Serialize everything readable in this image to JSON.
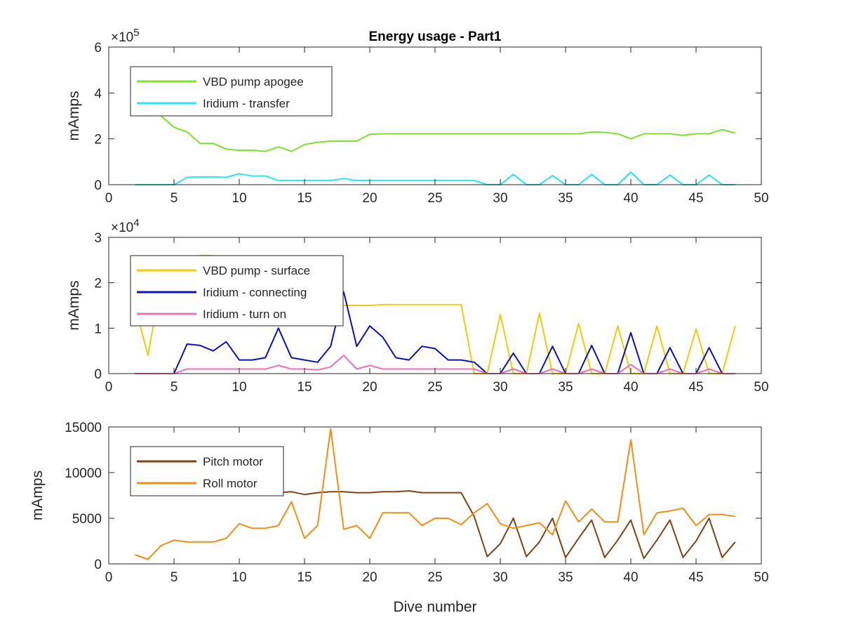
{
  "figure": {
    "title": "Energy usage - Part1",
    "xlabel": "Dive number"
  },
  "chart_data": [
    {
      "type": "line",
      "title": "Energy usage - Part1",
      "xlabel": "",
      "ylabel": "mAmps",
      "xlim": [
        0,
        50
      ],
      "ylim": [
        0,
        600000
      ],
      "xticks": [
        0,
        5,
        10,
        15,
        20,
        25,
        30,
        35,
        40,
        45,
        50
      ],
      "yticks": [
        0,
        200000,
        400000,
        600000
      ],
      "ytick_labels": [
        "0",
        "2",
        "4",
        "6"
      ],
      "y_exponent": "5",
      "legend_placement": "top-left",
      "series": [
        {
          "name": "VBD pump apogee",
          "color": "#7ee02d",
          "x": [
            2,
            3,
            4,
            5,
            6,
            7,
            8,
            9,
            10,
            11,
            12,
            13,
            14,
            15,
            16,
            17,
            18,
            19,
            20,
            21,
            22,
            23,
            24,
            25,
            26,
            27,
            28,
            29,
            30,
            31,
            32,
            33,
            34,
            35,
            36,
            37,
            38,
            39,
            40,
            41,
            42,
            43,
            44,
            45,
            46,
            47,
            48
          ],
          "y": [
            480000,
            350000,
            300000,
            250000,
            230000,
            180000,
            180000,
            155000,
            150000,
            150000,
            145000,
            165000,
            145000,
            175000,
            185000,
            190000,
            190000,
            190000,
            220000,
            222000,
            222000,
            222000,
            222000,
            222000,
            222000,
            222000,
            222000,
            222000,
            222000,
            222000,
            222000,
            222000,
            222000,
            222000,
            222000,
            230000,
            228000,
            222000,
            200000,
            222000,
            222000,
            222000,
            215000,
            222000,
            222000,
            240000,
            225000
          ]
        },
        {
          "name": "Iridium - transfer",
          "color": "#28e6ec",
          "x": [
            2,
            3,
            4,
            5,
            6,
            7,
            8,
            9,
            10,
            11,
            12,
            13,
            14,
            15,
            16,
            17,
            18,
            19,
            20,
            21,
            22,
            23,
            24,
            25,
            26,
            27,
            28,
            29,
            30,
            31,
            32,
            33,
            34,
            35,
            36,
            37,
            38,
            39,
            40,
            41,
            42,
            43,
            44,
            45,
            46,
            47,
            48
          ],
          "y": [
            0,
            0,
            0,
            0,
            32000,
            34000,
            34000,
            32000,
            48000,
            38000,
            38000,
            18000,
            18000,
            18000,
            18000,
            18000,
            27000,
            18000,
            18000,
            18000,
            18000,
            18000,
            18000,
            18000,
            18000,
            18000,
            18000,
            0,
            0,
            45000,
            0,
            0,
            40000,
            0,
            0,
            45000,
            0,
            0,
            55000,
            0,
            0,
            42000,
            0,
            0,
            42000,
            0,
            0
          ]
        }
      ]
    },
    {
      "type": "line",
      "title": "",
      "xlabel": "",
      "ylabel": "mAmps",
      "xlim": [
        0,
        50
      ],
      "ylim": [
        0,
        30000
      ],
      "xticks": [
        0,
        5,
        10,
        15,
        20,
        25,
        30,
        35,
        40,
        45,
        50
      ],
      "yticks": [
        0,
        10000,
        20000,
        30000
      ],
      "ytick_labels": [
        "0",
        "1",
        "2",
        "3"
      ],
      "y_exponent": "4",
      "legend_placement": "top-left",
      "series": [
        {
          "name": "VBD pump - surface",
          "color": "#f2cb0d",
          "x": [
            2,
            3,
            4,
            5,
            6,
            7,
            8,
            9,
            10,
            11,
            12,
            13,
            14,
            15,
            16,
            17,
            18,
            19,
            20,
            21,
            22,
            23,
            24,
            25,
            26,
            27,
            28,
            29,
            30,
            31,
            32,
            33,
            34,
            35,
            36,
            37,
            38,
            39,
            40,
            41,
            42,
            43,
            44,
            45,
            46,
            47,
            48
          ],
          "y": [
            15000,
            4000,
            20000,
            24000,
            25000,
            26000,
            26000,
            25000,
            24000,
            24000,
            23000,
            22000,
            21000,
            20000,
            18000,
            16000,
            15000,
            15000,
            15000,
            15200,
            15200,
            15200,
            15200,
            15200,
            15200,
            15200,
            0,
            0,
            13000,
            0,
            0,
            13300,
            0,
            0,
            11000,
            0,
            0,
            10500,
            0,
            0,
            10500,
            0,
            0,
            9800,
            0,
            0,
            10500
          ]
        },
        {
          "name": "Iridium - connecting",
          "color": "#0a14b4",
          "x": [
            2,
            3,
            4,
            5,
            6,
            7,
            8,
            9,
            10,
            11,
            12,
            13,
            14,
            15,
            16,
            17,
            18,
            19,
            20,
            21,
            22,
            23,
            24,
            25,
            26,
            27,
            28,
            29,
            30,
            31,
            32,
            33,
            34,
            35,
            36,
            37,
            38,
            39,
            40,
            41,
            42,
            43,
            44,
            45,
            46,
            47,
            48
          ],
          "y": [
            0,
            0,
            0,
            0,
            6500,
            6200,
            5000,
            7000,
            3000,
            3000,
            3500,
            10000,
            3500,
            3000,
            2500,
            6000,
            18000,
            6000,
            10500,
            8000,
            3500,
            3000,
            6000,
            5500,
            3000,
            3000,
            2500,
            0,
            0,
            4500,
            0,
            0,
            6000,
            0,
            0,
            6200,
            0,
            0,
            9000,
            0,
            0,
            5700,
            0,
            0,
            5700,
            0,
            0
          ]
        },
        {
          "name": "Iridium - turn on",
          "color": "#e873b4",
          "x": [
            2,
            3,
            4,
            5,
            6,
            7,
            8,
            9,
            10,
            11,
            12,
            13,
            14,
            15,
            16,
            17,
            18,
            19,
            20,
            21,
            22,
            23,
            24,
            25,
            26,
            27,
            28,
            29,
            30,
            31,
            32,
            33,
            34,
            35,
            36,
            37,
            38,
            39,
            40,
            41,
            42,
            43,
            44,
            45,
            46,
            47,
            48
          ],
          "y": [
            0,
            0,
            0,
            0,
            1000,
            1000,
            1000,
            1000,
            1000,
            1000,
            1000,
            1800,
            1000,
            1000,
            800,
            1500,
            4000,
            1000,
            1800,
            1000,
            1000,
            1000,
            1000,
            1000,
            1000,
            1000,
            1000,
            0,
            0,
            1000,
            0,
            0,
            1000,
            0,
            0,
            1000,
            0,
            0,
            2000,
            0,
            0,
            1000,
            0,
            0,
            1000,
            0,
            0
          ]
        }
      ]
    },
    {
      "type": "line",
      "title": "",
      "xlabel": "Dive number",
      "ylabel": "mAmps",
      "xlim": [
        0,
        50
      ],
      "ylim": [
        0,
        15000
      ],
      "xticks": [
        0,
        5,
        10,
        15,
        20,
        25,
        30,
        35,
        40,
        45,
        50
      ],
      "yticks": [
        0,
        5000,
        10000,
        15000
      ],
      "ytick_labels": [
        "0",
        "5000",
        "10000",
        "15000"
      ],
      "y_exponent": "",
      "legend_placement": "top-left",
      "series": [
        {
          "name": "Pitch motor",
          "color": "#7d4419",
          "x": [
            13,
            14,
            15,
            16,
            17,
            18,
            19,
            20,
            21,
            22,
            23,
            24,
            25,
            26,
            27,
            28,
            29,
            30,
            31,
            32,
            33,
            34,
            35,
            36,
            37,
            38,
            39,
            40,
            41,
            42,
            43,
            44,
            45,
            46,
            47,
            48
          ],
          "y": [
            7800,
            7900,
            7600,
            7800,
            7900,
            7900,
            7800,
            7800,
            7900,
            7900,
            8000,
            7800,
            7800,
            7800,
            7800,
            5200,
            800,
            2200,
            5000,
            800,
            2400,
            5000,
            700,
            2800,
            4800,
            700,
            2600,
            4800,
            600,
            2600,
            4800,
            700,
            2500,
            5000,
            700,
            2400
          ]
        },
        {
          "name": "Roll motor",
          "color": "#ef8f1a",
          "x": [
            2,
            3,
            4,
            5,
            6,
            7,
            8,
            9,
            10,
            11,
            12,
            13,
            14,
            15,
            16,
            17,
            18,
            19,
            20,
            21,
            22,
            23,
            24,
            25,
            26,
            27,
            28,
            29,
            30,
            31,
            32,
            33,
            34,
            35,
            36,
            37,
            38,
            39,
            40,
            41,
            42,
            43,
            44,
            45,
            46,
            47,
            48
          ],
          "y": [
            1000,
            500,
            2000,
            2600,
            2400,
            2400,
            2400,
            2800,
            4400,
            3900,
            3900,
            4200,
            6800,
            2800,
            4200,
            14800,
            3800,
            4200,
            2800,
            5600,
            5600,
            5600,
            4200,
            5000,
            5000,
            4300,
            5600,
            6600,
            4400,
            3900,
            4200,
            4500,
            3200,
            6900,
            4600,
            6000,
            4600,
            4600,
            13600,
            3200,
            5600,
            5800,
            6100,
            4200,
            5400,
            5400,
            5200
          ]
        }
      ]
    }
  ]
}
